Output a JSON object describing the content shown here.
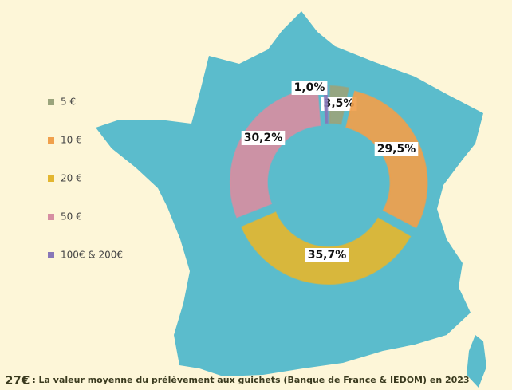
{
  "chart_data": {
    "type": "donut",
    "categories": [
      "5 €",
      "10 €",
      "20 €",
      "50 €",
      "100€ & 200€"
    ],
    "values": [
      3.5,
      29.5,
      35.7,
      30.2,
      1.0
    ],
    "value_labels": [
      "3,5%",
      "29,5%",
      "35,7%",
      "30,2%",
      "1,0%"
    ],
    "colors": [
      "#9aa47c",
      "#f0a04c",
      "#e3b630",
      "#d68ea2",
      "#8877b8"
    ],
    "note_value": "27€",
    "note": ": La valeur moyenne du prélèvement aux guichets (Banque de France & IEDOM) en 2023"
  }
}
